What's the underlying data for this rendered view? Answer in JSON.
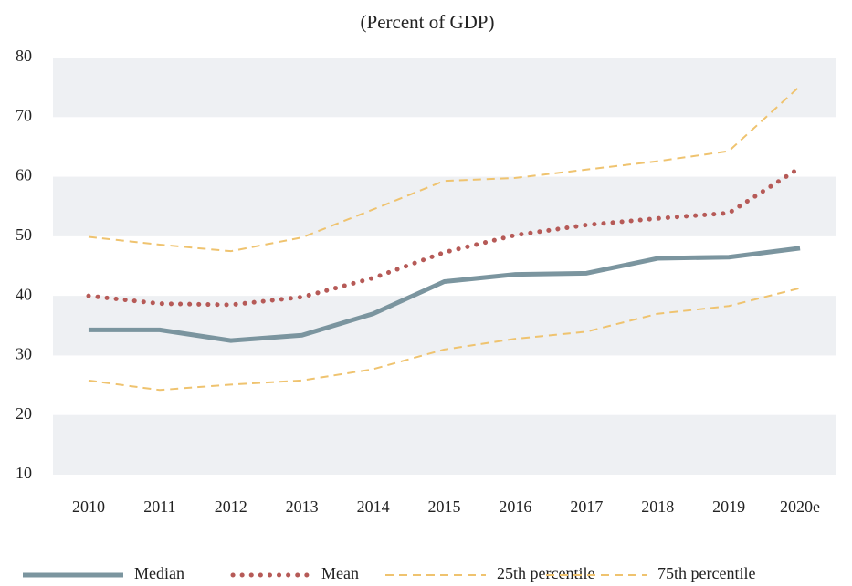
{
  "chart_data": {
    "type": "line",
    "subtitle": "(Percent of GDP)",
    "categories": [
      "2010",
      "2011",
      "2012",
      "2013",
      "2014",
      "2015",
      "2016",
      "2017",
      "2018",
      "2019",
      "2020e"
    ],
    "series": [
      {
        "name": "Median",
        "color": "#7b959f",
        "style": "solid",
        "values": [
          34.3,
          34.3,
          32.5,
          33.4,
          37.0,
          42.4,
          43.6,
          43.8,
          46.3,
          46.5,
          48.0
        ]
      },
      {
        "name": "Mean",
        "color": "#b65a57",
        "style": "dotted",
        "values": [
          40.0,
          38.7,
          38.5,
          39.8,
          43.0,
          47.3,
          50.2,
          51.9,
          53.0,
          53.9,
          61.5
        ]
      },
      {
        "name": "25th percentile",
        "color": "#efc36f",
        "style": "dashed",
        "values": [
          25.8,
          24.2,
          25.1,
          25.8,
          27.7,
          31.0,
          32.8,
          34.0,
          37.0,
          38.3,
          41.3
        ]
      },
      {
        "name": "75th percentile",
        "color": "#efc36f",
        "style": "dashed",
        "values": [
          49.9,
          48.6,
          47.5,
          49.8,
          54.5,
          59.3,
          59.8,
          61.2,
          62.6,
          64.3,
          75.2
        ]
      }
    ],
    "ylim": [
      10,
      80
    ],
    "yticks": [
      10,
      20,
      30,
      40,
      50,
      60,
      70,
      80
    ],
    "grid": "bands",
    "legend": "bottom"
  }
}
